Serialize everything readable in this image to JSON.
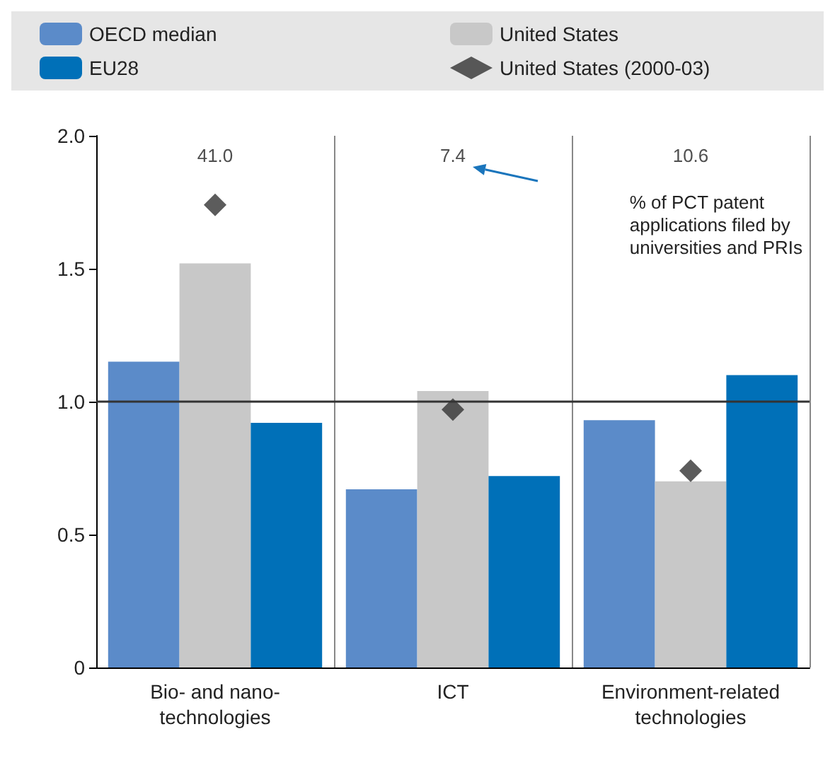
{
  "chart_data": {
    "type": "bar",
    "categories": [
      "Bio- and nano-\ntechnologies",
      "ICT",
      "Environment-related\ntechnologies"
    ],
    "series": [
      {
        "name": "OECD median",
        "color": "#5b8bc9",
        "values": [
          1.15,
          0.67,
          0.93
        ]
      },
      {
        "name": "United States",
        "color": "#c8c8c8",
        "values": [
          1.52,
          1.04,
          0.7
        ]
      },
      {
        "name": "EU28",
        "color": "#0070b8",
        "values": [
          0.92,
          0.72,
          1.1
        ]
      },
      {
        "name": "United States (2000-03)",
        "type": "scatter",
        "color": "#333333",
        "marker": "diamond",
        "x": [
          "Bio- and nano-\ntechnologies",
          "ICT",
          "Environment-related\ntechnologies"
        ],
        "values": [
          1.74,
          0.97,
          0.74
        ]
      }
    ],
    "ylim": [
      0,
      2
    ],
    "yticks": [
      0,
      0.5,
      {
        "value": 1,
        "label": "1.0"
      },
      1.5,
      {
        "value": 2,
        "label": "2.0"
      }
    ],
    "ref_lines": [
      {
        "axis": "y",
        "value": 1,
        "color": "#333333"
      }
    ],
    "annotations": [
      "41.0",
      "7.4",
      "10.6",
      "% of PCT patent\napplications filed by\nuniversities and PRIs"
    ],
    "grid": "x",
    "legend": "top"
  }
}
